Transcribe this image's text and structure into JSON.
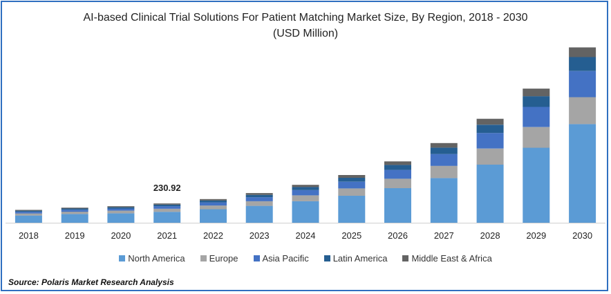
{
  "chart_data": {
    "type": "bar",
    "stacked": true,
    "title": "AI-based Clinical Trial Solutions For Patient Matching Market  Size, By Region, 2018 - 2030",
    "subtitle": "(USD Million)",
    "categories": [
      "2018",
      "2019",
      "2020",
      "2021",
      "2022",
      "2023",
      "2024",
      "2025",
      "2026",
      "2027",
      "2028",
      "2029",
      "2030"
    ],
    "series": [
      {
        "name": "North America",
        "color": "#5b9bd5",
        "values": [
          85,
          103,
          112,
          130,
          160,
          200,
          255,
          320,
          410,
          530,
          690,
          890,
          1170
        ]
      },
      {
        "name": "Europe",
        "color": "#a5a5a5",
        "values": [
          25,
          28,
          31,
          36,
          44,
          55,
          70,
          87,
          112,
          145,
          190,
          245,
          320
        ]
      },
      {
        "name": "Asia Pacific",
        "color": "#4472c4",
        "values": [
          20,
          22,
          25,
          30,
          37,
          47,
          62,
          80,
          105,
          140,
          185,
          240,
          310
        ]
      },
      {
        "name": "Latin America",
        "color": "#255e91",
        "values": [
          13,
          15,
          16,
          19,
          23,
          29,
          37,
          46,
          59,
          76,
          98,
          126,
          165
        ]
      },
      {
        "name": "Middle East & Africa",
        "color": "#636363",
        "values": [
          10,
          11,
          12,
          14,
          17,
          21,
          26,
          33,
          42,
          54,
          70,
          90,
          115
        ]
      }
    ],
    "annotations": [
      {
        "category": "2021",
        "text": "230.92"
      }
    ],
    "ylim": [
      0,
      2150
    ],
    "grid": false,
    "legend_position": "bottom"
  },
  "source": "Source: Polaris  Market Research Analysis"
}
